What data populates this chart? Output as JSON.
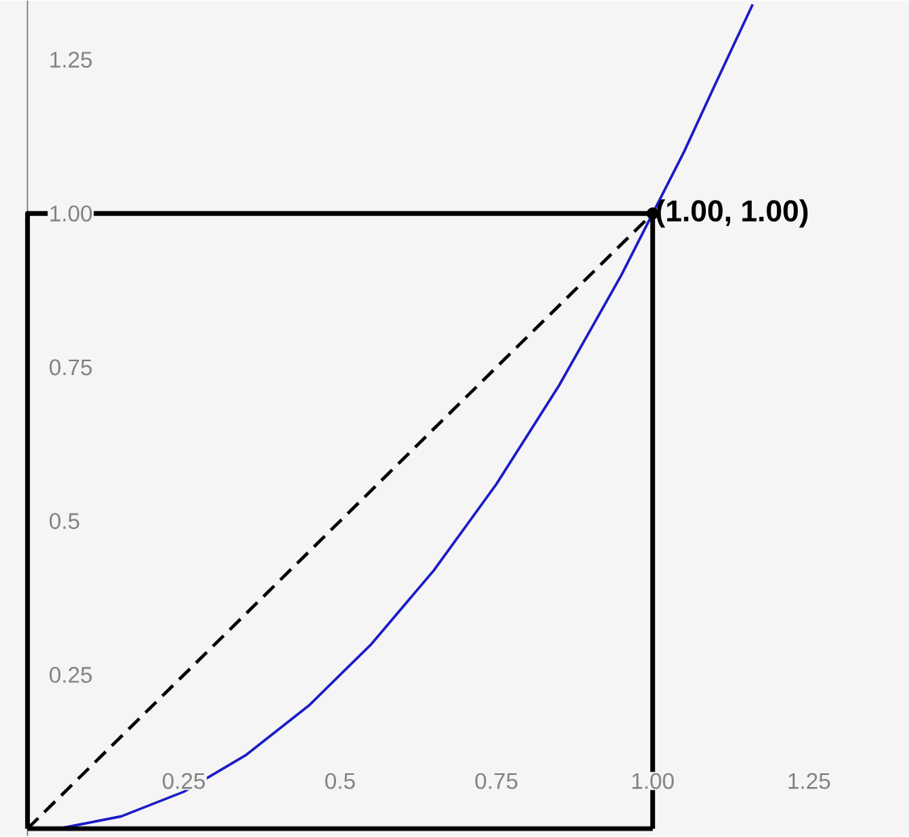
{
  "chart_data": {
    "type": "line",
    "xlim": [
      -0.044,
      1.41
    ],
    "ylim": [
      -0.012,
      1.346
    ],
    "xticks": [
      0.25,
      0.5,
      0.75,
      {
        "value": 1,
        "label": "1.00"
      },
      1.25
    ],
    "yticks": [
      0.25,
      0.5,
      0.75,
      {
        "value": 1,
        "label": "1.00"
      },
      1.25
    ],
    "grid": false,
    "marker": "none",
    "series": [
      {
        "color": "#1a1ac8",
        "line_style": "solid",
        "x": [
          0,
          0.05,
          0.1,
          0.15,
          0.2,
          0.25,
          0.3,
          0.35,
          0.4,
          0.45,
          0.5,
          0.55,
          0.6,
          0.65,
          0.7,
          0.75,
          0.8,
          0.85,
          0.9,
          0.95,
          1,
          1.05,
          1.1,
          1.16
        ],
        "values": [
          0,
          0,
          0.01,
          0.02,
          0.04,
          0.06,
          0.09,
          0.12,
          0.16,
          0.2,
          0.25,
          0.3,
          0.36,
          0.42,
          0.49,
          0.56,
          0.64,
          0.72,
          0.81,
          0.9,
          1,
          1.1,
          1.21,
          1.34
        ]
      },
      {
        "color": "#000000",
        "line_style": "dashed",
        "x": [
          0,
          1
        ],
        "values": [
          0,
          1
        ]
      },
      {
        "color": "#000000",
        "line_style": "solid",
        "x": [
          0,
          0,
          1,
          1
        ],
        "values": [
          0,
          1,
          1,
          0
        ]
      },
      {
        "color": "#000000",
        "line_style": "solid",
        "x": [
          0,
          1
        ],
        "values": [
          0,
          0
        ]
      },
      {
        "type": "scatter",
        "color": "#000000",
        "marker": "circle",
        "x": [
          1
        ],
        "values": [
          1
        ]
      }
    ],
    "annotations": [
      {
        "text": "(1.00, 1.00)",
        "x": 1,
        "y": 1
      }
    ]
  }
}
